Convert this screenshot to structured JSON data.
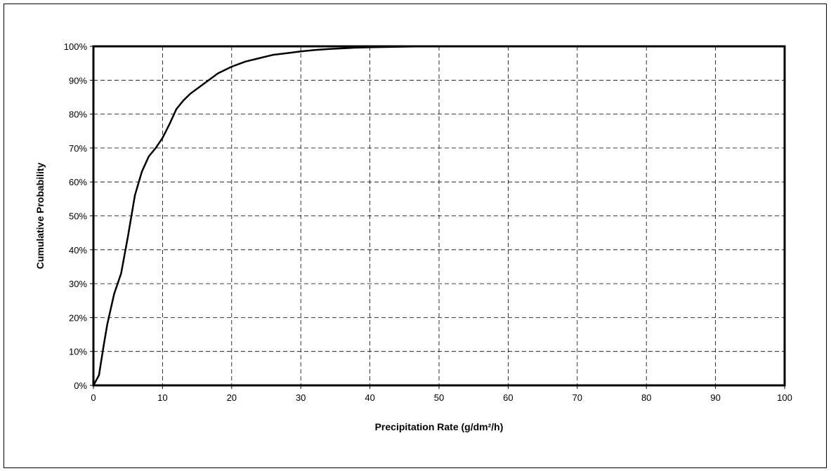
{
  "chart_data": {
    "type": "line",
    "title": "",
    "xlabel": "Precipitation Rate (g/dm²/h)",
    "ylabel": "Cumulative Probability",
    "xlim": [
      0,
      100
    ],
    "ylim": [
      0,
      100
    ],
    "x_ticks": [
      0,
      10,
      20,
      30,
      40,
      50,
      60,
      70,
      80,
      90,
      100
    ],
    "y_ticks": [
      0,
      10,
      20,
      30,
      40,
      50,
      60,
      70,
      80,
      90,
      100
    ],
    "x_tick_labels": [
      "0",
      "10",
      "20",
      "30",
      "40",
      "50",
      "60",
      "70",
      "80",
      "90",
      "100"
    ],
    "y_tick_labels": [
      "0%",
      "10%",
      "20%",
      "30%",
      "40%",
      "50%",
      "60%",
      "70%",
      "80%",
      "90%",
      "100%"
    ],
    "grid": true,
    "series": [
      {
        "x": [
          0,
          0.8,
          1.5,
          2,
          3,
          4,
          5,
          6,
          7,
          8,
          9,
          10,
          11,
          12,
          13,
          14,
          15,
          16,
          17,
          18,
          19,
          20,
          22,
          24,
          26,
          28,
          30,
          32,
          34,
          36,
          38,
          40,
          42,
          45,
          48,
          50,
          100
        ],
        "y": [
          0,
          3,
          12,
          18,
          27,
          33,
          44,
          56,
          63,
          67.5,
          70,
          73,
          77,
          81.5,
          84,
          86,
          87.5,
          89,
          90.5,
          92,
          93,
          94,
          95.5,
          96.5,
          97.5,
          98,
          98.5,
          98.9,
          99.2,
          99.4,
          99.6,
          99.7,
          99.8,
          99.9,
          100,
          100,
          100
        ]
      }
    ]
  }
}
